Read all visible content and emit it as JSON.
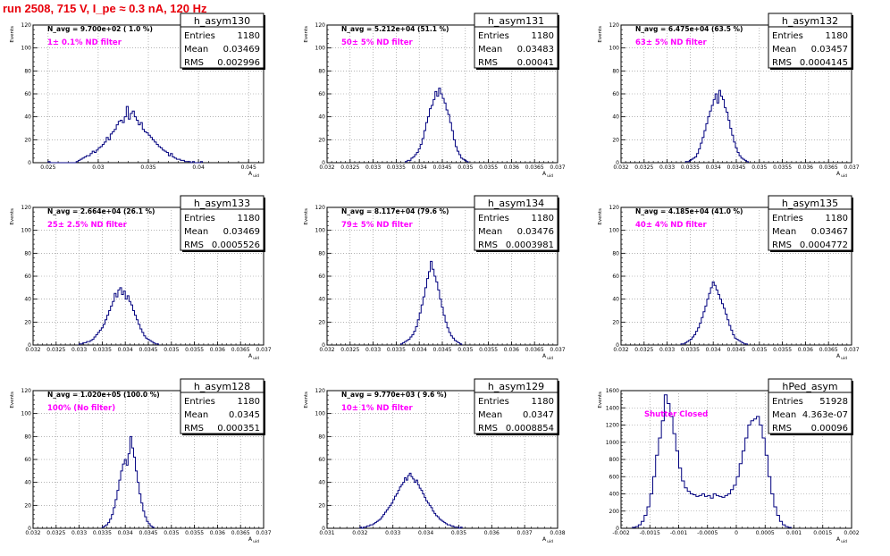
{
  "page": {
    "title": "run 2508,   715 V, I_pe ≈ 0.3 nA, 120 Hz"
  },
  "colors": {
    "title": "#e8000b",
    "histogram": "#00007f",
    "filter_text": "#ff00ff",
    "grid": "#888888"
  },
  "chart_data": [
    {
      "type": "histogram",
      "hist_name": "h_asym130",
      "stats": {
        "entries": "1180",
        "mean": "0.03469",
        "rms": "0.002996"
      },
      "navg": "N_avg = 9.700e+02 ( 1.0 %)",
      "filter": "1± 0.1% ND filter",
      "ylabel": "Events",
      "xlabel": "A_uid",
      "xlim": [
        0.0235,
        0.0465
      ],
      "ylim": [
        0,
        120
      ],
      "xticks": [
        0.025,
        0.03,
        0.035,
        0.04,
        0.045
      ],
      "xtick_labels": [
        "0.025",
        "0.03",
        "0.035",
        "0.04",
        "0.045"
      ],
      "yticks": [
        0,
        20,
        40,
        60,
        80,
        100,
        120
      ],
      "ytick_labels": [
        "0",
        "20",
        "40",
        "60",
        "80",
        "100",
        "120"
      ],
      "bin_lo": 0.025,
      "bin_width": 0.0002,
      "counts": [
        1,
        0,
        0,
        0,
        0,
        0,
        0,
        0,
        0,
        0,
        0,
        0,
        0,
        0,
        1,
        2,
        3,
        4,
        5,
        6,
        6,
        8,
        10,
        9,
        11,
        13,
        14,
        16,
        18,
        22,
        20,
        25,
        27,
        29,
        33,
        36,
        37,
        35,
        40,
        49,
        38,
        43,
        45,
        40,
        37,
        33,
        35,
        29,
        27,
        26,
        24,
        22,
        20,
        18,
        16,
        14,
        13,
        11,
        10,
        9,
        6,
        8,
        5,
        4,
        3,
        3,
        2,
        2,
        1,
        1,
        1,
        0,
        1,
        0,
        0,
        0,
        1
      ]
    },
    {
      "type": "histogram",
      "hist_name": "h_asym131",
      "stats": {
        "entries": "1180",
        "mean": "0.03483",
        "rms": "0.00041"
      },
      "navg": "N_avg = 5.212e+04 (51.1 %)",
      "filter": "50± 5% ND filter",
      "ylabel": "Events",
      "xlabel": "A_uid",
      "xlim": [
        0.032,
        0.037
      ],
      "ylim": [
        0,
        120
      ],
      "xticks": [
        0.032,
        0.0325,
        0.033,
        0.0335,
        0.034,
        0.0345,
        0.035,
        0.0355,
        0.036,
        0.0365,
        0.037
      ],
      "xtick_labels": [
        "0.032",
        "0.0325",
        "0.033",
        "0.0335",
        "0.034",
        "0.0345",
        "0.035",
        "0.0355",
        "0.036",
        "0.0365",
        "0.037"
      ],
      "yticks": [
        0,
        20,
        40,
        60,
        80,
        100,
        120
      ],
      "ytick_labels": [
        "0",
        "20",
        "40",
        "60",
        "80",
        "100",
        "120"
      ],
      "bin_lo": 0.0337,
      "bin_width": 4e-05,
      "counts": [
        1,
        2,
        2,
        4,
        5,
        7,
        9,
        12,
        16,
        21,
        28,
        35,
        40,
        47,
        50,
        55,
        62,
        58,
        65,
        60,
        56,
        52,
        46,
        42,
        35,
        28,
        20,
        14,
        10,
        7,
        4,
        3,
        2,
        1
      ]
    },
    {
      "type": "histogram",
      "hist_name": "h_asym132",
      "stats": {
        "entries": "1180",
        "mean": "0.03457",
        "rms": "0.0004145"
      },
      "navg": "N_avg = 6.475e+04 (63.5 %)",
      "filter": "63± 5% ND filter",
      "ylabel": "Events",
      "xlabel": "A_uid",
      "xlim": [
        0.032,
        0.037
      ],
      "ylim": [
        0,
        120
      ],
      "xticks": [
        0.032,
        0.0325,
        0.033,
        0.0335,
        0.034,
        0.0345,
        0.035,
        0.0355,
        0.036,
        0.0365,
        0.037
      ],
      "xtick_labels": [
        "0.032",
        "0.0325",
        "0.033",
        "0.0335",
        "0.034",
        "0.0345",
        "0.035",
        "0.0355",
        "0.036",
        "0.0365",
        "0.037"
      ],
      "yticks": [
        0,
        20,
        40,
        60,
        80,
        100,
        120
      ],
      "ytick_labels": [
        "0",
        "20",
        "40",
        "60",
        "80",
        "100",
        "120"
      ],
      "bin_lo": 0.0334,
      "bin_width": 4e-05,
      "counts": [
        1,
        1,
        2,
        3,
        4,
        5,
        8,
        12,
        17,
        22,
        28,
        34,
        40,
        45,
        50,
        55,
        60,
        52,
        63,
        58,
        55,
        48,
        44,
        37,
        30,
        24,
        18,
        13,
        9,
        6,
        4,
        3,
        2,
        1
      ]
    },
    {
      "type": "histogram",
      "hist_name": "h_asym133",
      "stats": {
        "entries": "1180",
        "mean": "0.03469",
        "rms": "0.0005526"
      },
      "navg": "N_avg = 2.664e+04 (26.1 %)",
      "filter": "25± 2.5% ND filter",
      "ylabel": "Events",
      "xlabel": "A_uid",
      "xlim": [
        0.032,
        0.037
      ],
      "ylim": [
        0,
        120
      ],
      "xticks": [
        0.032,
        0.0325,
        0.033,
        0.0335,
        0.034,
        0.0345,
        0.035,
        0.0355,
        0.036,
        0.0365,
        0.037
      ],
      "xtick_labels": [
        "0.032",
        "0.0325",
        "0.033",
        "0.0335",
        "0.034",
        "0.0345",
        "0.035",
        "0.0355",
        "0.036",
        "0.0365",
        "0.037"
      ],
      "yticks": [
        0,
        20,
        40,
        60,
        80,
        100,
        120
      ],
      "ytick_labels": [
        "0",
        "20",
        "40",
        "60",
        "80",
        "100",
        "120"
      ],
      "bin_lo": 0.033,
      "bin_width": 4e-05,
      "counts": [
        1,
        1,
        2,
        2,
        3,
        3,
        4,
        5,
        7,
        9,
        11,
        13,
        15,
        18,
        22,
        26,
        30,
        34,
        38,
        45,
        42,
        48,
        50,
        44,
        47,
        40,
        43,
        38,
        35,
        30,
        26,
        22,
        18,
        14,
        11,
        8,
        6,
        5,
        4,
        3,
        2,
        1,
        1
      ]
    },
    {
      "type": "histogram",
      "hist_name": "h_asym134",
      "stats": {
        "entries": "1180",
        "mean": "0.03476",
        "rms": "0.0003981"
      },
      "navg": "N_avg = 8.117e+04 (79.6 %)",
      "filter": "79± 5% ND filter",
      "ylabel": "Events",
      "xlabel": "A_uid",
      "xlim": [
        0.032,
        0.037
      ],
      "ylim": [
        0,
        120
      ],
      "xticks": [
        0.032,
        0.0325,
        0.033,
        0.0335,
        0.034,
        0.0345,
        0.035,
        0.0355,
        0.036,
        0.0365,
        0.037
      ],
      "xtick_labels": [
        "0.032",
        "0.0325",
        "0.033",
        "0.0335",
        "0.034",
        "0.0345",
        "0.035",
        "0.0355",
        "0.036",
        "0.0365",
        "0.037"
      ],
      "yticks": [
        0,
        20,
        40,
        60,
        80,
        100,
        120
      ],
      "ytick_labels": [
        "0",
        "20",
        "40",
        "60",
        "80",
        "100",
        "120"
      ],
      "bin_lo": 0.0336,
      "bin_width": 4e-05,
      "counts": [
        1,
        2,
        3,
        4,
        5,
        7,
        9,
        12,
        16,
        22,
        28,
        35,
        42,
        50,
        58,
        64,
        73,
        66,
        60,
        55,
        48,
        40,
        33,
        26,
        20,
        15,
        11,
        8,
        6,
        4,
        3,
        2,
        1
      ]
    },
    {
      "type": "histogram",
      "hist_name": "h_asym135",
      "stats": {
        "entries": "1180",
        "mean": "0.03467",
        "rms": "0.0004772"
      },
      "navg": "N_avg = 4.185e+04 (41.0 %)",
      "filter": "40± 4% ND filter",
      "ylabel": "Events",
      "xlabel": "A_uid",
      "xlim": [
        0.032,
        0.037
      ],
      "ylim": [
        0,
        120
      ],
      "xticks": [
        0.032,
        0.0325,
        0.033,
        0.0335,
        0.034,
        0.0345,
        0.035,
        0.0355,
        0.036,
        0.0365,
        0.037
      ],
      "xtick_labels": [
        "0.032",
        "0.0325",
        "0.033",
        "0.0335",
        "0.034",
        "0.0345",
        "0.035",
        "0.0355",
        "0.036",
        "0.0365",
        "0.037"
      ],
      "yticks": [
        0,
        20,
        40,
        60,
        80,
        100,
        120
      ],
      "ytick_labels": [
        "0",
        "20",
        "40",
        "60",
        "80",
        "100",
        "120"
      ],
      "bin_lo": 0.0333,
      "bin_width": 4e-05,
      "counts": [
        1,
        1,
        2,
        3,
        4,
        5,
        7,
        9,
        12,
        15,
        19,
        24,
        29,
        34,
        40,
        45,
        50,
        55,
        52,
        48,
        44,
        40,
        36,
        32,
        27,
        22,
        17,
        13,
        9,
        6,
        5,
        4,
        3,
        2,
        1,
        1
      ]
    },
    {
      "type": "histogram",
      "hist_name": "h_asym128",
      "stats": {
        "entries": "1180",
        "mean": "0.0345",
        "rms": "0.000351"
      },
      "navg": "N_avg = 1.020e+05 (100.0 %)",
      "filter": "100% (No filter)",
      "ylabel": "Events",
      "xlabel": "A_uid",
      "xlim": [
        0.032,
        0.037
      ],
      "ylim": [
        0,
        120
      ],
      "xticks": [
        0.032,
        0.0325,
        0.033,
        0.0335,
        0.034,
        0.0345,
        0.035,
        0.0355,
        0.036,
        0.0365,
        0.037
      ],
      "xtick_labels": [
        "0.032",
        "0.0325",
        "0.033",
        "0.0335",
        "0.034",
        "0.0345",
        "0.035",
        "0.0355",
        "0.036",
        "0.0365",
        "0.037"
      ],
      "yticks": [
        0,
        20,
        40,
        60,
        80,
        100,
        120
      ],
      "ytick_labels": [
        "0",
        "20",
        "40",
        "60",
        "80",
        "100",
        "120"
      ],
      "bin_lo": 0.0335,
      "bin_width": 4e-05,
      "counts": [
        1,
        2,
        3,
        5,
        8,
        12,
        18,
        25,
        33,
        42,
        50,
        56,
        60,
        55,
        65,
        80,
        70,
        62,
        50,
        40,
        30,
        22,
        15,
        10,
        6,
        4,
        2,
        1
      ]
    },
    {
      "type": "histogram",
      "hist_name": "h_asym129",
      "stats": {
        "entries": "1180",
        "mean": "0.0347",
        "rms": "0.0008854"
      },
      "navg": "N_avg = 9.770e+03 ( 9.6 %)",
      "filter": "10± 1% ND filter",
      "ylabel": "Events",
      "xlabel": "A_uid",
      "xlim": [
        0.031,
        0.038
      ],
      "ylim": [
        0,
        120
      ],
      "xticks": [
        0.031,
        0.032,
        0.033,
        0.034,
        0.035,
        0.036,
        0.037,
        0.038
      ],
      "xtick_labels": [
        "0.031",
        "0.032",
        "0.033",
        "0.034",
        "0.035",
        "0.036",
        "0.037",
        "0.038"
      ],
      "yticks": [
        0,
        20,
        40,
        60,
        80,
        100,
        120
      ],
      "ytick_labels": [
        "0",
        "20",
        "40",
        "60",
        "80",
        "100",
        "120"
      ],
      "bin_lo": 0.032,
      "bin_width": 5e-05,
      "counts": [
        1,
        0,
        1,
        1,
        2,
        2,
        3,
        3,
        4,
        5,
        6,
        7,
        8,
        10,
        12,
        14,
        16,
        18,
        20,
        22,
        25,
        28,
        30,
        33,
        36,
        38,
        40,
        44,
        42,
        46,
        48,
        45,
        43,
        40,
        42,
        38,
        35,
        33,
        30,
        27,
        24,
        22,
        20,
        18,
        15,
        13,
        11,
        10,
        8,
        7,
        6,
        5,
        4,
        3,
        3,
        2,
        2,
        1,
        1,
        1,
        0,
        1
      ]
    },
    {
      "type": "histogram",
      "hist_name": "hPed_asym",
      "stats": {
        "entries": "51928",
        "mean": "4.363e-07",
        "rms": "0.00096"
      },
      "navg": "",
      "filter": "Shutter Closed",
      "ylabel": "Events",
      "xlabel": "A_uid",
      "xlim": [
        -0.002,
        0.002
      ],
      "ylim": [
        0,
        1600
      ],
      "xticks": [
        -0.002,
        -0.0015,
        -0.001,
        -0.0005,
        0,
        0.0005,
        0.001,
        0.0015,
        0.002
      ],
      "xtick_labels": [
        "-0.002",
        "-0.0015",
        "-0.001",
        "-0.0005",
        "0",
        "0.0005",
        "0.001",
        "0.0015",
        "0.002"
      ],
      "yticks": [
        0,
        200,
        400,
        600,
        800,
        1000,
        1200,
        1400,
        1600
      ],
      "ytick_labels": [
        "0",
        "200",
        "400",
        "600",
        "800",
        "1000",
        "1200",
        "1400",
        "1600"
      ],
      "bin_lo": -0.0018,
      "bin_width": 5e-05,
      "counts": [
        10,
        20,
        40,
        80,
        150,
        250,
        400,
        600,
        850,
        1050,
        1250,
        1550,
        1450,
        1300,
        1100,
        900,
        700,
        550,
        470,
        430,
        400,
        390,
        370,
        380,
        400,
        370,
        380,
        350,
        400,
        380,
        370,
        360,
        380,
        400,
        450,
        500,
        600,
        750,
        900,
        1050,
        1200,
        1250,
        1270,
        1300,
        1200,
        1050,
        850,
        600,
        400,
        250,
        150,
        80,
        40,
        20,
        10
      ]
    }
  ]
}
